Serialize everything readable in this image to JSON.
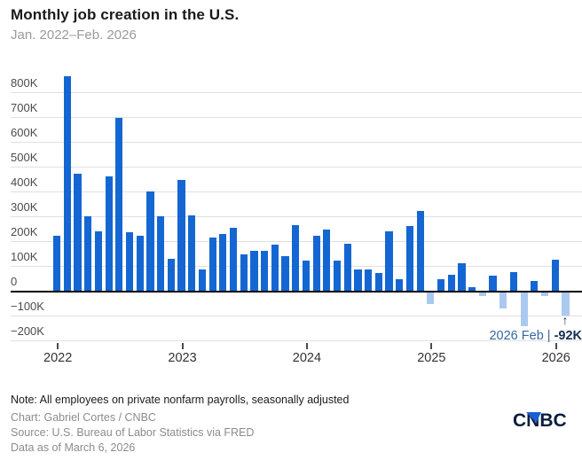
{
  "header": {
    "title": "Monthly job creation in the U.S.",
    "subtitle": "Jan. 2022–Feb. 2026"
  },
  "chart_data": {
    "type": "bar",
    "title": "Monthly job creation in the U.S.",
    "subtitle": "Jan. 2022–Feb. 2026",
    "unit": "thousands of jobs (K)",
    "xlabel": "",
    "ylabel": "",
    "ylim": [
      -200,
      900
    ],
    "grid": true,
    "legend": "none",
    "categories": [
      "Jan 2022",
      "Feb 2022",
      "Mar 2022",
      "Apr 2022",
      "May 2022",
      "Jun 2022",
      "Jul 2022",
      "Aug 2022",
      "Sep 2022",
      "Oct 2022",
      "Nov 2022",
      "Dec 2022",
      "Jan 2023",
      "Feb 2023",
      "Mar 2023",
      "Apr 2023",
      "May 2023",
      "Jun 2023",
      "Jul 2023",
      "Aug 2023",
      "Sep 2023",
      "Oct 2023",
      "Nov 2023",
      "Dec 2023",
      "Jan 2024",
      "Feb 2024",
      "Mar 2024",
      "Apr 2024",
      "May 2024",
      "Jun 2024",
      "Jul 2024",
      "Aug 2024",
      "Sep 2024",
      "Oct 2024",
      "Nov 2024",
      "Dec 2024",
      "Jan 2025",
      "Feb 2025",
      "Mar 2025",
      "Apr 2025",
      "May 2025",
      "Jun 2025",
      "Jul 2025",
      "Aug 2025",
      "Sep 2025",
      "Oct 2025",
      "Nov 2025",
      "Dec 2025",
      "Jan 2026",
      "Feb 2026"
    ],
    "values": [
      220,
      865,
      470,
      300,
      240,
      460,
      695,
      235,
      220,
      400,
      300,
      130,
      445,
      305,
      85,
      215,
      230,
      255,
      145,
      160,
      160,
      185,
      140,
      265,
      120,
      220,
      245,
      120,
      190,
      85,
      85,
      70,
      240,
      45,
      260,
      320,
      -45,
      45,
      65,
      110,
      15,
      -15,
      60,
      -65,
      75,
      -135,
      40,
      -15,
      125,
      -92
    ],
    "y_ticks": [
      {
        "value": 800,
        "label": "800K"
      },
      {
        "value": 700,
        "label": "700K"
      },
      {
        "value": 600,
        "label": "600K"
      },
      {
        "value": 500,
        "label": "500K"
      },
      {
        "value": 400,
        "label": "400K"
      },
      {
        "value": 300,
        "label": "300K"
      },
      {
        "value": 200,
        "label": "200K"
      },
      {
        "value": 100,
        "label": "100K"
      },
      {
        "value": 0,
        "label": "0"
      },
      {
        "value": -100,
        "label": "−100K"
      },
      {
        "value": -200,
        "label": "−200K"
      }
    ],
    "x_ticks": [
      {
        "label": "2022",
        "index": 0
      },
      {
        "label": "2023",
        "index": 12
      },
      {
        "label": "2024",
        "index": 24
      },
      {
        "label": "2025",
        "index": 36
      },
      {
        "label": "2026",
        "index": 48
      }
    ],
    "colors": {
      "positive_bar": "#1467d2",
      "negative_bar": "#aac9f0",
      "gridline": "#e0e0e0",
      "zero_line": "#000000"
    }
  },
  "annotation": {
    "arrow": "↑",
    "label": "2026 Feb |",
    "value": "-92K"
  },
  "footer": {
    "note": "Note: All employees on private nonfarm payrolls, seasonally adjusted",
    "credit": "Chart: Gabriel Cortes / CNBC",
    "source": "Source: U.S. Bureau of Labor Statistics via FRED",
    "as_of": "Data as of March 6, 2026"
  },
  "logo": {
    "text": "CNBC"
  }
}
